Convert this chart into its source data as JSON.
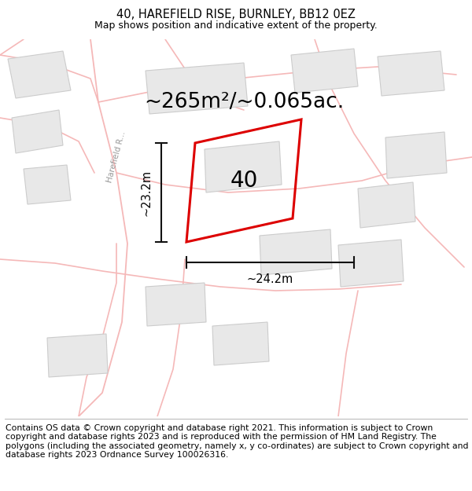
{
  "title": "40, HAREFIELD RISE, BURNLEY, BB12 0EZ",
  "subtitle": "Map shows position and indicative extent of the property.",
  "area_label": "~265m²/~0.065ac.",
  "plot_number": "40",
  "dim_vertical": "~23.2m",
  "dim_horizontal": "~24.2m",
  "road_label": "Harefield R...",
  "footer": "Contains OS data © Crown copyright and database right 2021. This information is subject to Crown copyright and database rights 2023 and is reproduced with the permission of HM Land Registry. The polygons (including the associated geometry, namely x, y co-ordinates) are subject to Crown copyright and database rights 2023 Ordnance Survey 100026316.",
  "bg_color": "#ffffff",
  "map_bg": "#ffffff",
  "road_color": "#f5b8b8",
  "building_color": "#e8e8e8",
  "building_edge": "#cccccc",
  "plot_color": "#dd0000",
  "dim_line_color": "#111111",
  "title_fontsize": 10.5,
  "subtitle_fontsize": 9,
  "area_fontsize": 19,
  "plot_num_fontsize": 20,
  "dim_fontsize": 10.5,
  "footer_fontsize": 7.8
}
